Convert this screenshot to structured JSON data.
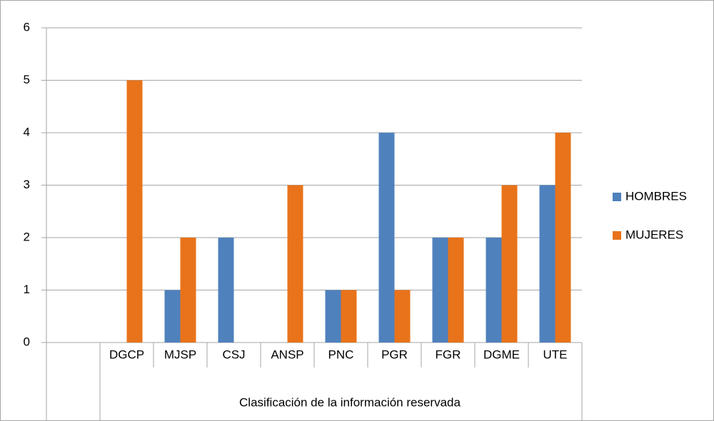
{
  "chart_data": {
    "type": "bar",
    "xlabel": "Clasificación de la información reservada",
    "categories": [
      null,
      "DGCP",
      "MJSP",
      "CSJ",
      "ANSP",
      "PNC",
      "PGR",
      "FGR",
      "DGME",
      "UTE"
    ],
    "series": [
      {
        "name": "HOMBRES",
        "color": "#4f81bd",
        "values": [
          null,
          0,
          1,
          2,
          0,
          1,
          4,
          2,
          2,
          3
        ]
      },
      {
        "name": "MUJERES",
        "color": "#e8731a",
        "values": [
          null,
          5,
          2,
          0,
          3,
          1,
          1,
          2,
          3,
          4
        ]
      }
    ],
    "ylim": [
      0,
      6
    ],
    "yticks": [
      0,
      1,
      2,
      3,
      4,
      5,
      6
    ],
    "grid": true,
    "legend": "right"
  }
}
